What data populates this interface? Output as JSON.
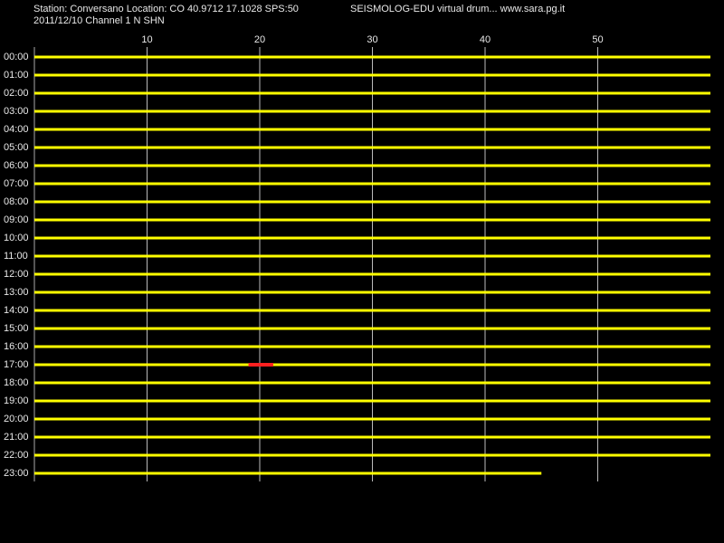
{
  "chart_data": {
    "type": "drum",
    "title": "Station: Conversano Location: CO 40.9712 17.1028 SPS:50",
    "title_right": "SEISMOLOG-EDU virtual drum... www.sara.pg.it",
    "subtitle": "2011/12/10  Channel 1 N SHN",
    "categories": [
      "00:00",
      "01:00",
      "02:00",
      "03:00",
      "04:00",
      "05:00",
      "06:00",
      "07:00",
      "08:00",
      "09:00",
      "10:00",
      "11:00",
      "12:00",
      "13:00",
      "14:00",
      "15:00",
      "16:00",
      "17:00",
      "18:00",
      "19:00",
      "20:00",
      "21:00",
      "22:00",
      "23:00"
    ],
    "values": [
      60,
      60,
      60,
      60,
      60,
      60,
      60,
      60,
      60,
      60,
      60,
      60,
      60,
      60,
      60,
      60,
      60,
      60,
      60,
      60,
      60,
      60,
      60,
      45
    ],
    "color": "#ffff00",
    "xlim": [
      0,
      60
    ],
    "xticks": [
      10,
      20,
      30,
      40,
      50
    ],
    "grid": true,
    "event": {
      "category": "17:00",
      "x": [
        19,
        21.2
      ],
      "color": "#ff2020"
    }
  }
}
